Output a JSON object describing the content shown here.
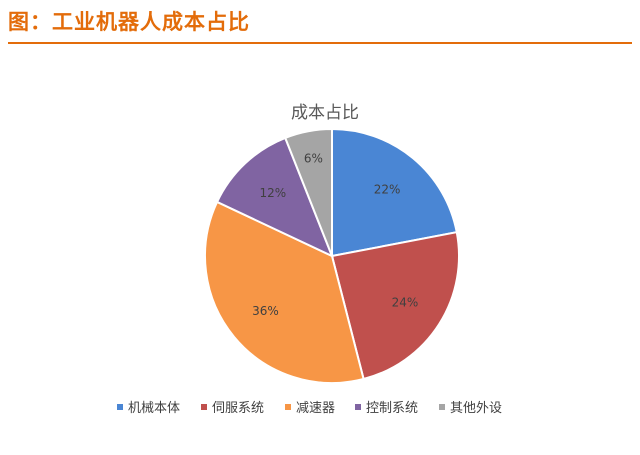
{
  "header": {
    "title": "图：工业机器人成本占比"
  },
  "chart_data": {
    "type": "pie",
    "title": "成本占比",
    "categories": [
      "机械本体",
      "伺服系统",
      "减速器",
      "控制系统",
      "其他外设"
    ],
    "values": [
      22,
      24,
      36,
      12,
      6
    ],
    "labels": [
      "22%",
      "24%",
      "36%",
      "12%",
      "6%"
    ],
    "colors": [
      "#4a86d4",
      "#c0504d",
      "#f79646",
      "#8064a2",
      "#a5a5a5"
    ],
    "start_angle_deg": 0,
    "direction": "clockwise",
    "legend_position": "bottom"
  }
}
